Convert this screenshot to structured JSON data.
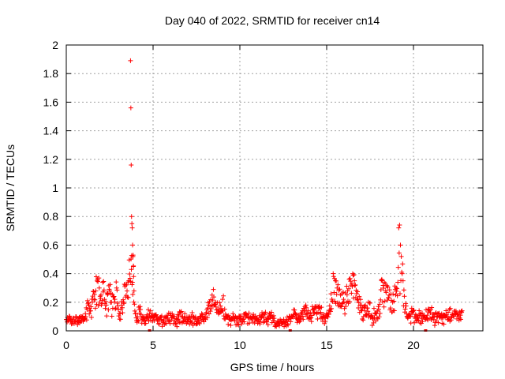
{
  "chart_data": {
    "type": "scatter",
    "title": "Day 040 of 2022, SRMTID for receiver cn14",
    "xlabel": "GPS time / hours",
    "ylabel": "SRMTID / TECUs",
    "xlim": [
      0,
      24
    ],
    "ylim": [
      0,
      2
    ],
    "xticks": [
      0,
      5,
      10,
      15,
      20
    ],
    "yticks": [
      0,
      0.2,
      0.4,
      0.6,
      0.8,
      1,
      1.2,
      1.4,
      1.6,
      1.8,
      2
    ],
    "grid": true,
    "marker": "+",
    "color": "#ff0000",
    "series": [
      {
        "name": "SRMTID",
        "x": [
          0.0,
          0.2,
          0.4,
          0.6,
          0.8,
          1.0,
          1.1,
          1.2,
          1.3,
          1.4,
          1.5,
          1.6,
          1.7,
          1.8,
          1.9,
          2.0,
          2.1,
          2.2,
          2.3,
          2.4,
          2.5,
          2.6,
          2.7,
          2.8,
          2.9,
          3.0,
          3.1,
          3.2,
          3.3,
          3.4,
          3.5,
          3.6,
          3.7,
          3.72,
          3.74,
          3.76,
          3.78,
          3.8,
          3.82,
          3.84,
          3.86,
          3.88,
          3.9,
          4.0,
          4.1,
          4.2,
          4.4,
          4.6,
          4.8,
          5.0,
          5.2,
          5.4,
          5.6,
          5.8,
          6.0,
          6.2,
          6.4,
          6.6,
          6.8,
          7.0,
          7.2,
          7.4,
          7.6,
          7.8,
          8.0,
          8.2,
          8.4,
          8.6,
          8.8,
          9.0,
          9.2,
          9.4,
          9.6,
          9.8,
          10.0,
          10.2,
          10.4,
          10.6,
          10.8,
          11.0,
          11.2,
          11.4,
          11.6,
          11.8,
          12.0,
          12.2,
          12.4,
          12.6,
          12.8,
          13.0,
          13.2,
          13.4,
          13.6,
          13.8,
          14.0,
          14.2,
          14.4,
          14.6,
          14.8,
          15.0,
          15.2,
          15.4,
          15.5,
          15.6,
          15.8,
          16.0,
          16.2,
          16.4,
          16.5,
          16.6,
          16.8,
          17.0,
          17.2,
          17.4,
          17.6,
          17.8,
          18.0,
          18.2,
          18.4,
          18.6,
          18.8,
          19.0,
          19.1,
          19.15,
          19.2,
          19.25,
          19.3,
          19.35,
          19.4,
          19.6,
          19.8,
          20.0,
          20.2,
          20.4,
          20.6,
          20.8,
          21.0,
          21.2,
          21.4,
          21.6,
          21.8,
          22.0,
          22.2,
          22.4,
          22.6,
          22.8
        ],
        "values": [
          0.08,
          0.1,
          0.09,
          0.07,
          0.1,
          0.08,
          0.12,
          0.15,
          0.18,
          0.14,
          0.2,
          0.22,
          0.28,
          0.36,
          0.3,
          0.25,
          0.34,
          0.22,
          0.18,
          0.26,
          0.28,
          0.2,
          0.24,
          0.22,
          0.3,
          0.15,
          0.12,
          0.18,
          0.2,
          0.32,
          0.28,
          0.35,
          1.89,
          1.56,
          1.16,
          0.8,
          0.75,
          0.72,
          0.6,
          0.52,
          0.45,
          0.38,
          0.28,
          0.12,
          0.1,
          0.15,
          0.08,
          0.1,
          0.12,
          0.09,
          0.1,
          0.08,
          0.07,
          0.09,
          0.12,
          0.1,
          0.08,
          0.13,
          0.09,
          0.08,
          0.1,
          0.09,
          0.07,
          0.12,
          0.1,
          0.18,
          0.25,
          0.2,
          0.15,
          0.22,
          0.1,
          0.08,
          0.12,
          0.09,
          0.1,
          0.08,
          0.11,
          0.09,
          0.1,
          0.08,
          0.09,
          0.12,
          0.08,
          0.1,
          0.06,
          0.05,
          0.07,
          0.06,
          0.08,
          0.1,
          0.12,
          0.09,
          0.14,
          0.18,
          0.12,
          0.15,
          0.13,
          0.16,
          0.1,
          0.12,
          0.15,
          0.38,
          0.35,
          0.3,
          0.25,
          0.2,
          0.28,
          0.32,
          0.4,
          0.35,
          0.22,
          0.18,
          0.14,
          0.2,
          0.1,
          0.12,
          0.15,
          0.35,
          0.28,
          0.25,
          0.2,
          0.3,
          0.34,
          0.72,
          0.74,
          0.6,
          0.52,
          0.4,
          0.35,
          0.12,
          0.1,
          0.14,
          0.09,
          0.12,
          0.1,
          0.11,
          0.15,
          0.1,
          0.12,
          0.09,
          0.11,
          0.13,
          0.1,
          0.12,
          0.1,
          0.14
        ],
        "zero_points_x": [
          4.8,
          12.9,
          20.7
        ]
      }
    ]
  }
}
